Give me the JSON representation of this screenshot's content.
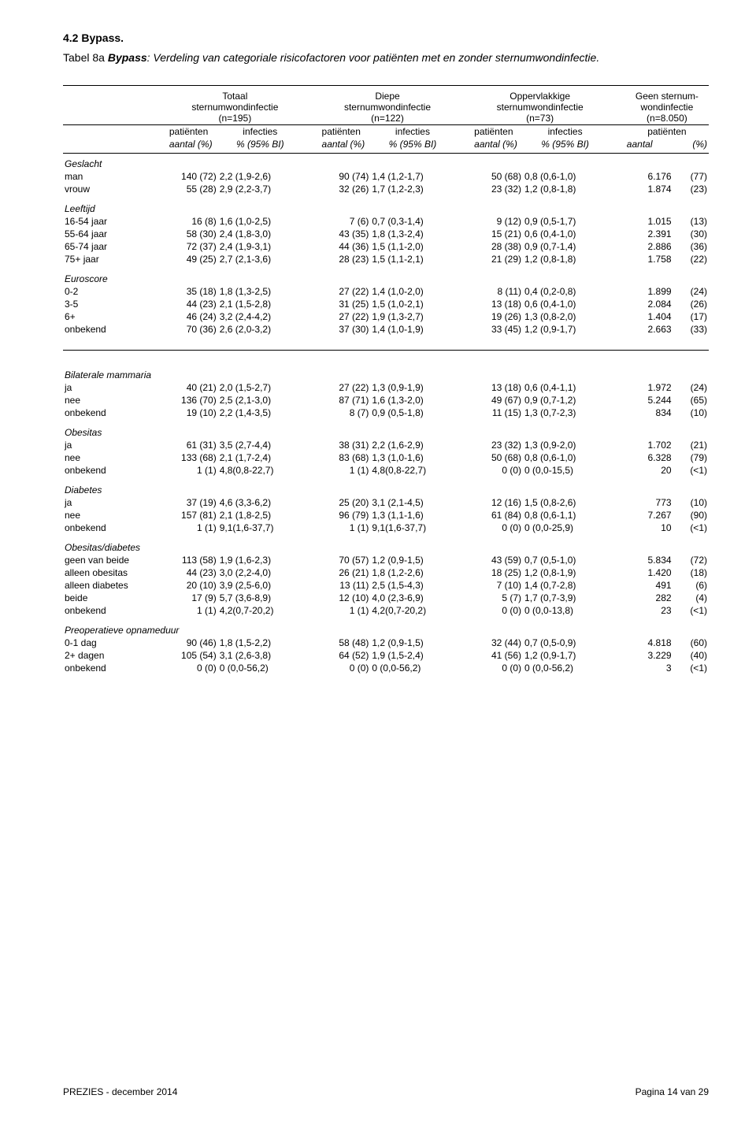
{
  "section_heading": "4.2 Bypass.",
  "caption_prefix": "Tabel 8a ",
  "caption_bold": "Bypass",
  "caption_rest": ": Verdeling van categoriale risicofactoren voor patiënten met en zonder sternumwondinfectie.",
  "header": {
    "col1_l1": "Totaal",
    "col1_l2": "sternumwondinfectie",
    "col1_l3": "(n=195)",
    "col2_l1": "Diepe",
    "col2_l2": "sternumwondinfectie",
    "col2_l3": "(n=122)",
    "col3_l1": "Oppervlakkige",
    "col3_l2": "sternumwondinfectie",
    "col3_l3": "(n=73)",
    "col4_l1": "Geen sternum-",
    "col4_l2": "wondinfectie",
    "col4_l3": "(n=8.050)",
    "pat": "patiënten",
    "inf": "infecties",
    "pat_sub": "aantal (%)",
    "inf_sub": "% (95% BI)"
  },
  "groups": [
    {
      "title": "Geslacht",
      "rows": [
        {
          "l": "man",
          "t_p": "140 (72)",
          "t_i": "2,2 (1,9-2,6)",
          "d_p": "90 (74)",
          "d_i": "1,4 (1,2-1,7)",
          "o_p": "50 (68)",
          "o_i": "0,8 (0,6-1,0)",
          "g_n": "6.176",
          "g_p": "(77)"
        },
        {
          "l": "vrouw",
          "t_p": "55 (28)",
          "t_i": "2,9 (2,2-3,7)",
          "d_p": "32 (26)",
          "d_i": "1,7 (1,2-2,3)",
          "o_p": "23 (32)",
          "o_i": "1,2 (0,8-1,8)",
          "g_n": "1.874",
          "g_p": "(23)"
        }
      ]
    },
    {
      "title": "Leeftijd",
      "rows": [
        {
          "l": "16-54 jaar",
          "t_p": "16 (8)",
          "t_i": "1,6 (1,0-2,5)",
          "d_p": "7 (6)",
          "d_i": "0,7 (0,3-1,4)",
          "o_p": "9 (12)",
          "o_i": "0,9 (0,5-1,7)",
          "g_n": "1.015",
          "g_p": "(13)"
        },
        {
          "l": "55-64 jaar",
          "t_p": "58 (30)",
          "t_i": "2,4 (1,8-3,0)",
          "d_p": "43 (35)",
          "d_i": "1,8 (1,3-2,4)",
          "o_p": "15 (21)",
          "o_i": "0,6 (0,4-1,0)",
          "g_n": "2.391",
          "g_p": "(30)"
        },
        {
          "l": "65-74 jaar",
          "t_p": "72 (37)",
          "t_i": "2,4 (1,9-3,1)",
          "d_p": "44 (36)",
          "d_i": "1,5 (1,1-2,0)",
          "o_p": "28 (38)",
          "o_i": "0,9 (0,7-1,4)",
          "g_n": "2.886",
          "g_p": "(36)"
        },
        {
          "l": "75+ jaar",
          "t_p": "49 (25)",
          "t_i": "2,7 (2,1-3,6)",
          "d_p": "28 (23)",
          "d_i": "1,5 (1,1-2,1)",
          "o_p": "21 (29)",
          "o_i": "1,2 (0,8-1,8)",
          "g_n": "1.758",
          "g_p": "(22)"
        }
      ]
    },
    {
      "title": "Euroscore",
      "rows": [
        {
          "l": "0-2",
          "t_p": "35 (18)",
          "t_i": "1,8 (1,3-2,5)",
          "d_p": "27 (22)",
          "d_i": "1,4 (1,0-2,0)",
          "o_p": "8 (11)",
          "o_i": "0,4 (0,2-0,8)",
          "g_n": "1.899",
          "g_p": "(24)"
        },
        {
          "l": "3-5",
          "t_p": "44 (23)",
          "t_i": "2,1 (1,5-2,8)",
          "d_p": "31 (25)",
          "d_i": "1,5 (1,0-2,1)",
          "o_p": "13 (18)",
          "o_i": "0,6 (0,4-1,0)",
          "g_n": "2.084",
          "g_p": "(26)"
        },
        {
          "l": "6+",
          "t_p": "46 (24)",
          "t_i": "3,2 (2,4-4,2)",
          "d_p": "27 (22)",
          "d_i": "1,9 (1,3-2,7)",
          "o_p": "19 (26)",
          "o_i": "1,3 (0,8-2,0)",
          "g_n": "1.404",
          "g_p": "(17)"
        },
        {
          "l": "onbekend",
          "t_p": "70 (36)",
          "t_i": "2,6 (2,0-3,2)",
          "d_p": "37 (30)",
          "d_i": "1,4 (1,0-1,9)",
          "o_p": "33 (45)",
          "o_i": "1,2 (0,9-1,7)",
          "g_n": "2.663",
          "g_p": "(33)"
        }
      ]
    }
  ],
  "groups2": [
    {
      "title": "Bilaterale mammaria",
      "rows": [
        {
          "l": "ja",
          "t_p": "40 (21)",
          "t_i": "2,0 (1,5-2,7)",
          "d_p": "27 (22)",
          "d_i": "1,3 (0,9-1,9)",
          "o_p": "13 (18)",
          "o_i": "0,6 (0,4-1,1)",
          "g_n": "1.972",
          "g_p": "(24)"
        },
        {
          "l": "nee",
          "t_p": "136 (70)",
          "t_i": "2,5 (2,1-3,0)",
          "d_p": "87 (71)",
          "d_i": "1,6 (1,3-2,0)",
          "o_p": "49 (67)",
          "o_i": "0,9 (0,7-1,2)",
          "g_n": "5.244",
          "g_p": "(65)"
        },
        {
          "l": "onbekend",
          "t_p": "19 (10)",
          "t_i": "2,2 (1,4-3,5)",
          "d_p": "8 (7)",
          "d_i": "0,9 (0,5-1,8)",
          "o_p": "11 (15)",
          "o_i": "1,3 (0,7-2,3)",
          "g_n": "834",
          "g_p": "(10)"
        }
      ]
    },
    {
      "title": "Obesitas",
      "rows": [
        {
          "l": "ja",
          "t_p": "61 (31)",
          "t_i": "3,5 (2,7-4,4)",
          "d_p": "38 (31)",
          "d_i": "2,2 (1,6-2,9)",
          "o_p": "23 (32)",
          "o_i": "1,3 (0,9-2,0)",
          "g_n": "1.702",
          "g_p": "(21)"
        },
        {
          "l": "nee",
          "t_p": "133 (68)",
          "t_i": "2,1 (1,7-2,4)",
          "d_p": "83 (68)",
          "d_i": "1,3 (1,0-1,6)",
          "o_p": "50 (68)",
          "o_i": "0,8 (0,6-1,0)",
          "g_n": "6.328",
          "g_p": "(79)"
        },
        {
          "l": "onbekend",
          "t_p": "1 (1)",
          "t_i": "4,8(0,8-22,7)",
          "d_p": "1 (1)",
          "d_i": "4,8(0,8-22,7)",
          "o_p": "0 (0)",
          "o_i": "0 (0,0-15,5)",
          "g_n": "20",
          "g_p": "(<1)"
        }
      ]
    },
    {
      "title": "Diabetes",
      "rows": [
        {
          "l": "ja",
          "t_p": "37 (19)",
          "t_i": "4,6 (3,3-6,2)",
          "d_p": "25 (20)",
          "d_i": "3,1 (2,1-4,5)",
          "o_p": "12 (16)",
          "o_i": "1,5 (0,8-2,6)",
          "g_n": "773",
          "g_p": "(10)"
        },
        {
          "l": "nee",
          "t_p": "157 (81)",
          "t_i": "2,1 (1,8-2,5)",
          "d_p": "96 (79)",
          "d_i": "1,3 (1,1-1,6)",
          "o_p": "61 (84)",
          "o_i": "0,8 (0,6-1,1)",
          "g_n": "7.267",
          "g_p": "(90)"
        },
        {
          "l": "onbekend",
          "t_p": "1 (1)",
          "t_i": "9,1(1,6-37,7)",
          "d_p": "1 (1)",
          "d_i": "9,1(1,6-37,7)",
          "o_p": "0 (0)",
          "o_i": "0 (0,0-25,9)",
          "g_n": "10",
          "g_p": "(<1)"
        }
      ]
    },
    {
      "title": "Obesitas/diabetes",
      "rows": [
        {
          "l": "geen van beide",
          "t_p": "113 (58)",
          "t_i": "1,9 (1,6-2,3)",
          "d_p": "70 (57)",
          "d_i": "1,2 (0,9-1,5)",
          "o_p": "43 (59)",
          "o_i": "0,7 (0,5-1,0)",
          "g_n": "5.834",
          "g_p": "(72)"
        },
        {
          "l": "alleen obesitas",
          "t_p": "44 (23)",
          "t_i": "3,0 (2,2-4,0)",
          "d_p": "26 (21)",
          "d_i": "1,8 (1,2-2,6)",
          "o_p": "18 (25)",
          "o_i": "1,2 (0,8-1,9)",
          "g_n": "1.420",
          "g_p": "(18)"
        },
        {
          "l": "alleen diabetes",
          "t_p": "20 (10)",
          "t_i": "3,9 (2,5-6,0)",
          "d_p": "13 (11)",
          "d_i": "2,5 (1,5-4,3)",
          "o_p": "7 (10)",
          "o_i": "1,4 (0,7-2,8)",
          "g_n": "491",
          "g_p": "(6)"
        },
        {
          "l": "beide",
          "t_p": "17 (9)",
          "t_i": "5,7 (3,6-8,9)",
          "d_p": "12 (10)",
          "d_i": "4,0 (2,3-6,9)",
          "o_p": "5 (7)",
          "o_i": "1,7 (0,7-3,9)",
          "g_n": "282",
          "g_p": "(4)"
        },
        {
          "l": "onbekend",
          "t_p": "1 (1)",
          "t_i": "4,2(0,7-20,2)",
          "d_p": "1 (1)",
          "d_i": "4,2(0,7-20,2)",
          "o_p": "0 (0)",
          "o_i": "0 (0,0-13,8)",
          "g_n": "23",
          "g_p": "(<1)"
        }
      ]
    },
    {
      "title": "Preoperatieve opnameduur",
      "rows": [
        {
          "l": "0-1 dag",
          "t_p": "90 (46)",
          "t_i": "1,8 (1,5-2,2)",
          "d_p": "58 (48)",
          "d_i": "1,2 (0,9-1,5)",
          "o_p": "32 (44)",
          "o_i": "0,7 (0,5-0,9)",
          "g_n": "4.818",
          "g_p": "(60)"
        },
        {
          "l": "2+ dagen",
          "t_p": "105 (54)",
          "t_i": "3,1 (2,6-3,8)",
          "d_p": "64 (52)",
          "d_i": "1,9 (1,5-2,4)",
          "o_p": "41 (56)",
          "o_i": "1,2 (0,9-1,7)",
          "g_n": "3.229",
          "g_p": "(40)"
        },
        {
          "l": "onbekend",
          "t_p": "0 (0)",
          "t_i": "0 (0,0-56,2)",
          "d_p": "0 (0)",
          "d_i": "0 (0,0-56,2)",
          "o_p": "0 (0)",
          "o_i": "0 (0,0-56,2)",
          "g_n": "3",
          "g_p": "(<1)"
        }
      ]
    }
  ],
  "footer_left": "PREZIES  -  december  2014",
  "footer_right": "Pagina 14 van 29"
}
